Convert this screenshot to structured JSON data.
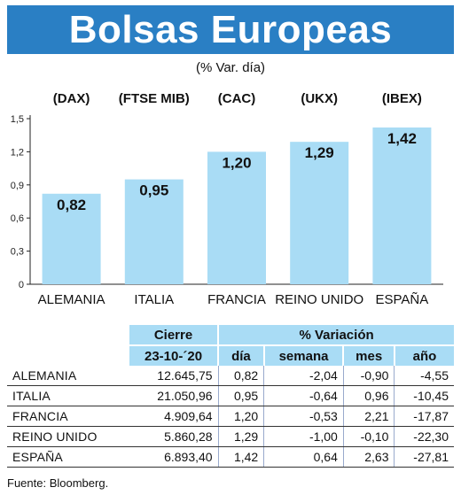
{
  "title": "Bolsas Europeas",
  "subtitle": "(% Var. día)",
  "colors": {
    "banner": "#2a7fc4",
    "bar": "#a9dcf5",
    "table_header": "#a9dcf5"
  },
  "chart_data": {
    "type": "bar",
    "categories": [
      "ALEMANIA",
      "ITALIA",
      "FRANCIA",
      "REINO UNIDO",
      "ESPAÑA"
    ],
    "index_labels": [
      "(DAX)",
      "(FTSE MIB)",
      "(CAC)",
      "(UKX)",
      "(IBEX)"
    ],
    "values": [
      0.82,
      0.95,
      1.2,
      1.29,
      1.42
    ],
    "value_labels": [
      "0,82",
      "0,95",
      "1,20",
      "1,29",
      "1,42"
    ],
    "ylim": [
      0,
      1.5
    ],
    "yticks": [
      0,
      0.3,
      0.6,
      0.9,
      1.2,
      1.5
    ],
    "ytick_labels": [
      "0",
      "0,3",
      "0,6",
      "0,9",
      "1,2",
      "1,5"
    ],
    "grid": false
  },
  "table": {
    "group_headers": {
      "cierre": "Cierre",
      "variacion": "% Variación"
    },
    "sub_headers": {
      "date": "23-10-´20",
      "dia": "día",
      "semana": "semana",
      "mes": "mes",
      "anio": "año"
    },
    "rows": [
      {
        "name": "ALEMANIA",
        "cierre": "12.645,75",
        "dia": "0,82",
        "semana": "-2,04",
        "mes": "-0,90",
        "anio": "-4,55"
      },
      {
        "name": "ITALIA",
        "cierre": "21.050,96",
        "dia": "0,95",
        "semana": "-0,64",
        "mes": "0,96",
        "anio": "-10,45"
      },
      {
        "name": "FRANCIA",
        "cierre": "4.909,64",
        "dia": "1,20",
        "semana": "-0,53",
        "mes": "2,21",
        "anio": "-17,87"
      },
      {
        "name": "REINO UNIDO",
        "cierre": "5.860,28",
        "dia": "1,29",
        "semana": "-1,00",
        "mes": "-0,10",
        "anio": "-22,30"
      },
      {
        "name": "ESPAÑA",
        "cierre": "6.893,40",
        "dia": "1,42",
        "semana": "0,64",
        "mes": "2,63",
        "anio": "-27,81"
      }
    ]
  },
  "source": "Fuente: Bloomberg."
}
